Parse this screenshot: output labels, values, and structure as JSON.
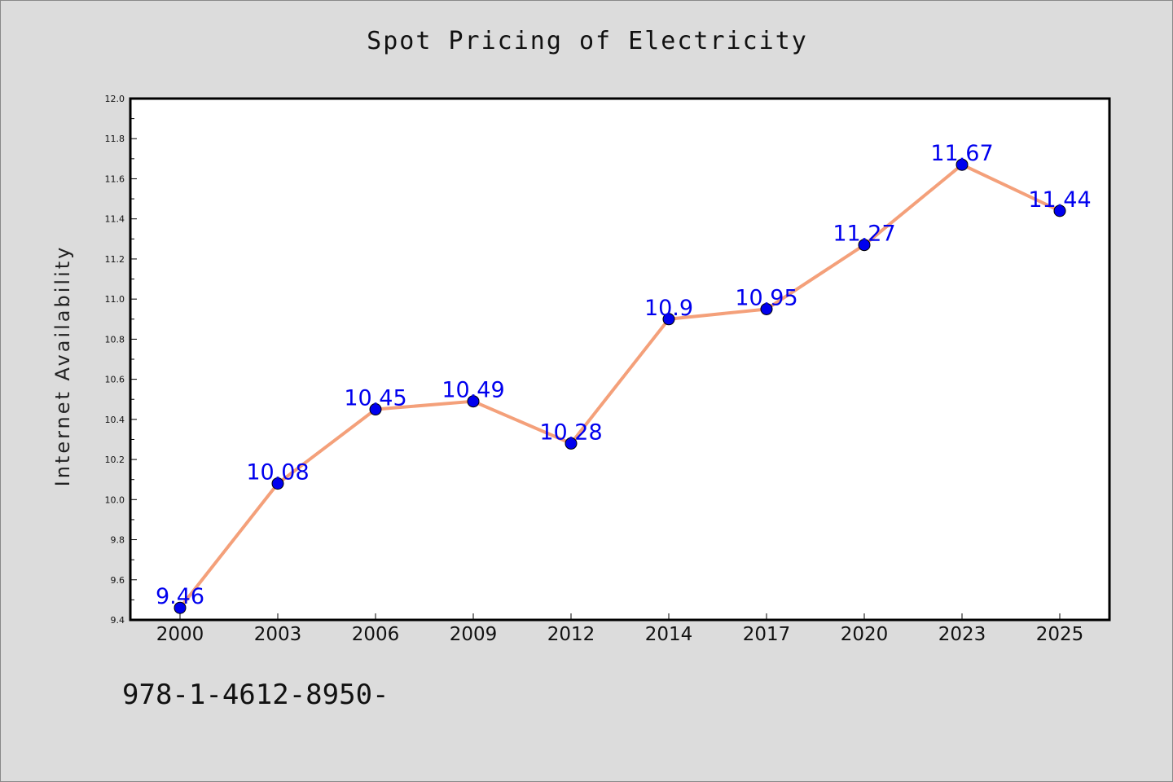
{
  "chart_data": {
    "type": "line",
    "title": "Spot Pricing of Electricity",
    "xlabel": "",
    "ylabel": "Internet Availability",
    "categories": [
      "2000",
      "2003",
      "2006",
      "2009",
      "2012",
      "2014",
      "2017",
      "2020",
      "2023",
      "2025"
    ],
    "series": [
      {
        "values": [
          9.46,
          10.08,
          10.45,
          10.49,
          10.28,
          10.9,
          10.95,
          11.27,
          11.67,
          11.44
        ],
        "data_labels": [
          "9.46",
          "10.08",
          "10.45",
          "10.49",
          "10.28",
          "10.9",
          "10.95",
          "11.27",
          "11.67",
          "11.44"
        ],
        "line_color": "#f4a07a",
        "marker_color": "#0000ee",
        "label_color": "#0000ee"
      }
    ],
    "ylim": [
      9.4,
      12.0
    ],
    "yticks": [
      "9.4",
      "9.6",
      "9.8",
      "10.0",
      "10.2",
      "10.4",
      "10.6",
      "10.8",
      "11.0",
      "11.2",
      "11.4",
      "11.6",
      "11.8",
      "12.0"
    ],
    "grid": false,
    "legend": "none",
    "plot_background": "#ffffff",
    "page_background": "#dcdcdc"
  },
  "footer": {
    "code": "978-1-4612-8950-"
  }
}
